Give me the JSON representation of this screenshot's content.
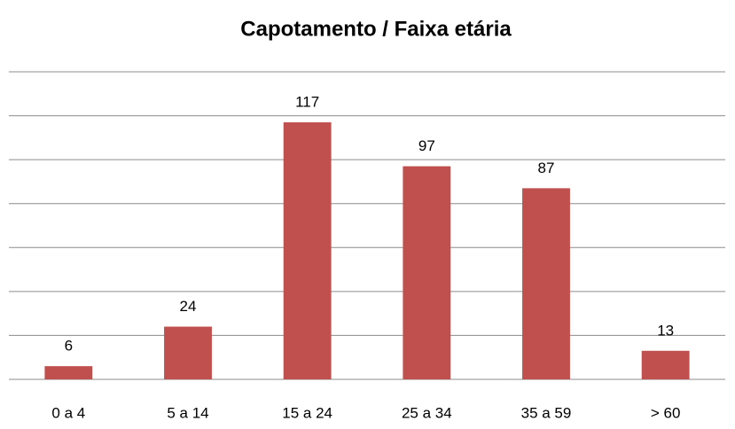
{
  "chart_data": {
    "type": "bar",
    "title": "Capotamento / Faixa etária",
    "categories": [
      "0 a 4",
      "5 a 14",
      "15 a 24",
      "25 a 34",
      "35 a 59",
      "> 60"
    ],
    "values": [
      6,
      24,
      117,
      97,
      87,
      13
    ],
    "color": "#c0504d",
    "ylim": [
      0,
      140
    ],
    "yticks": [
      0,
      20,
      40,
      60,
      80,
      100,
      120,
      140
    ],
    "grid": true
  }
}
